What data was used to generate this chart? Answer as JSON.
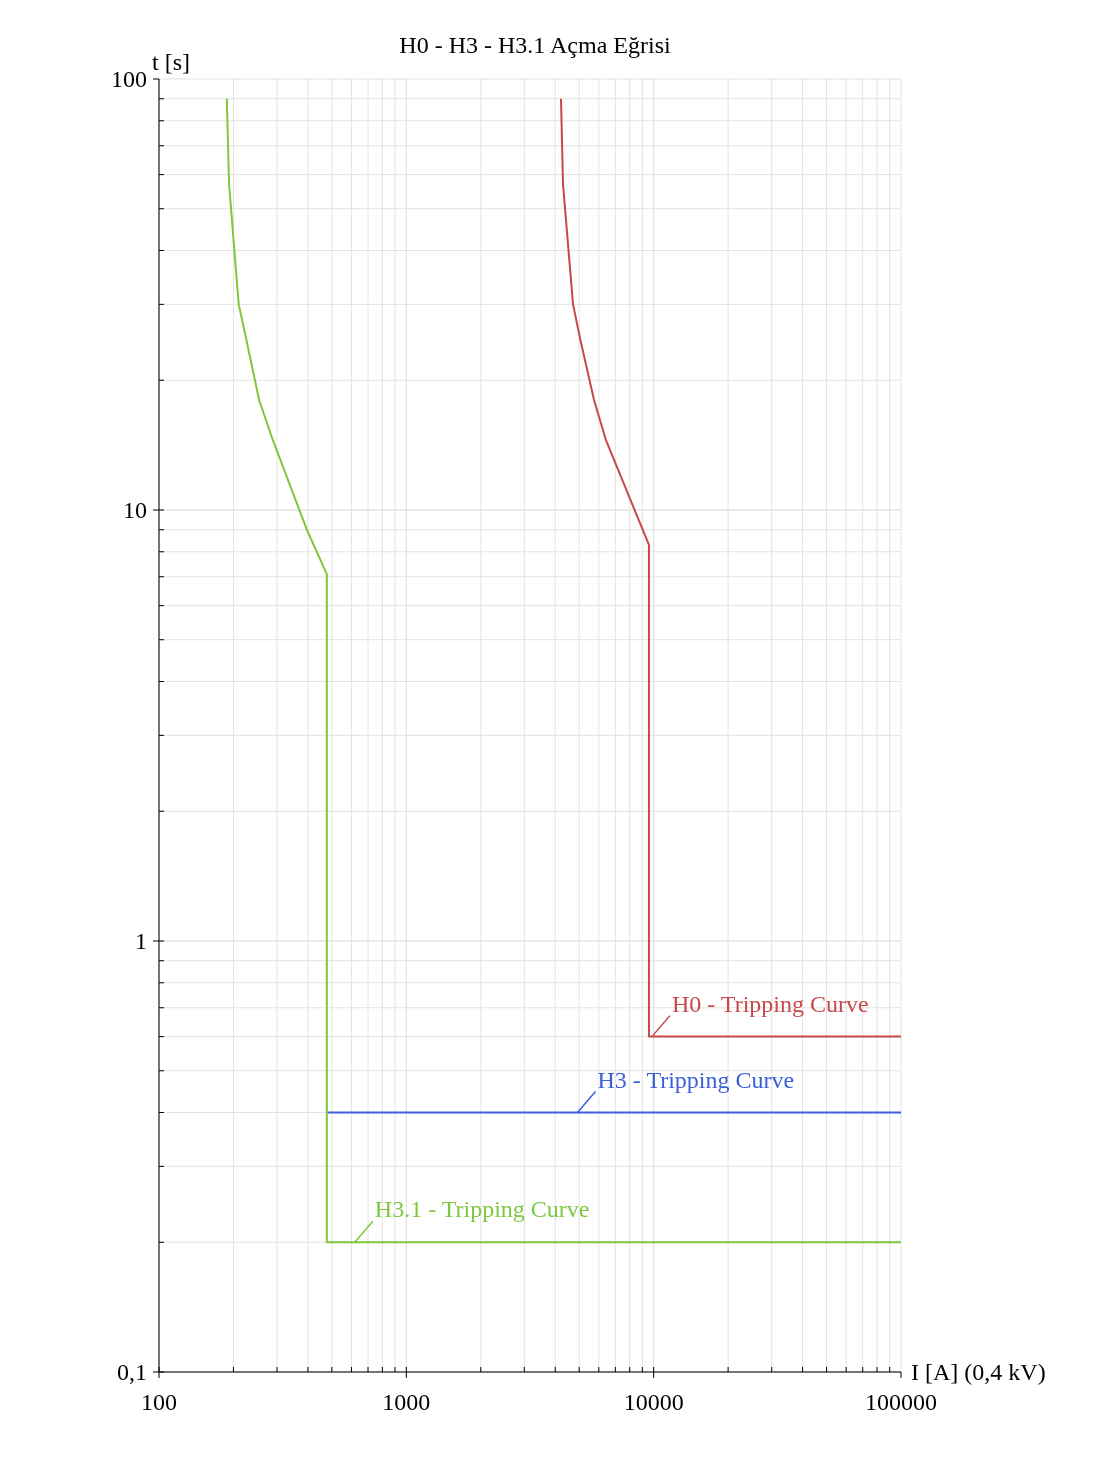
{
  "chart_data": {
    "type": "line",
    "title": "H0 - H3 - H3.1 Açma Eğrisi",
    "xlabel": "I [A] (0,4 kV)",
    "ylabel": "t [s]",
    "log": "xy",
    "grid": true,
    "legend": "bottom right",
    "marker": "none",
    "line_style": "solid",
    "xlim": [
      100,
      100000
    ],
    "ylim": [
      0.1,
      100
    ],
    "xticks": [
      100,
      1000,
      10000,
      100000
    ],
    "yticks": [
      {
        "value": 0.1,
        "label": "0,1"
      },
      1,
      10,
      100
    ],
    "series": [
      {
        "name": "H0 - Tripping Curve",
        "color": "#c8484a",
        "x": [
          4220,
          4300,
          4720,
          5040,
          5740,
          6420,
          9570,
          9570,
          100000
        ],
        "values": [
          90,
          57,
          30,
          25,
          18,
          14.5,
          8.3,
          0.6,
          0.6
        ]
      },
      {
        "name": "H3 - Tripping Curve",
        "color": "#3a5fd8",
        "x": [
          480,
          100000
        ],
        "values": [
          0.4,
          0.4
        ]
      },
      {
        "name": "H3.1 - Tripping Curve",
        "color": "#7dc83c",
        "x": [
          188,
          192,
          210,
          225,
          254,
          289,
          396,
          477,
          477,
          100000
        ],
        "values": [
          90,
          57,
          30,
          25,
          18,
          14.5,
          9,
          7.1,
          0.2,
          0.2
        ]
      }
    ]
  }
}
